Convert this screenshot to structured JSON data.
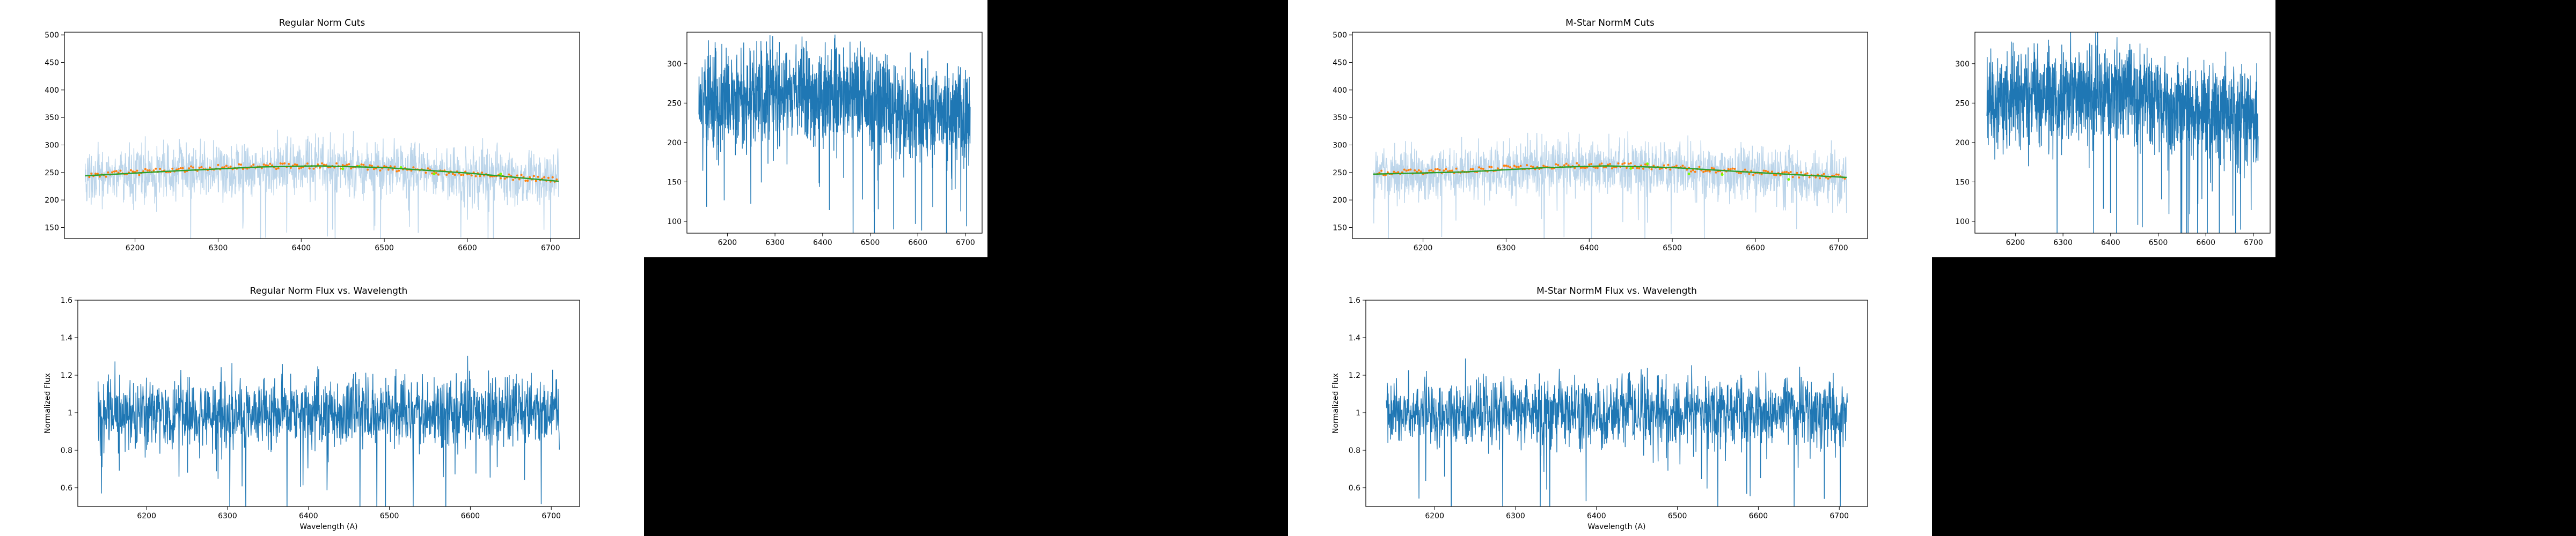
{
  "colors": {
    "page_background": "#000000",
    "raw_spectrum": "#1f77b4",
    "raw_spectrum_faded": "#bcd5ea",
    "cut_points": "#ff7f0e",
    "fit_line": "#2ca02c",
    "rejected_points": "#7cfc00"
  },
  "chart_data": [
    {
      "id": "regular-cuts",
      "type": "line",
      "title": "Regular Norm Cuts",
      "xlabel": "",
      "ylabel": "",
      "xlim": [
        6115,
        6735
      ],
      "ylim": [
        130,
        505
      ],
      "x_ticks": [
        6200,
        6300,
        6400,
        6500,
        6600,
        6700
      ],
      "y_ticks": [
        150,
        200,
        250,
        300,
        350,
        400,
        450,
        500
      ],
      "x_range": [
        6140,
        6710
      ],
      "series": [
        {
          "role": "spectrum",
          "color": "#bcd5ea",
          "baseline": [
            [
              6140,
              242
            ],
            [
              6250,
              250
            ],
            [
              6420,
              262
            ],
            [
              6550,
              250
            ],
            [
              6710,
              236
            ]
          ],
          "noise": 24,
          "dips": 22
        },
        {
          "role": "cuts",
          "color": "#ff7f0e",
          "points": [
            [
              6150,
              245
            ],
            [
              6200,
              250
            ],
            [
              6250,
              255
            ],
            [
              6300,
              259
            ],
            [
              6350,
              261
            ],
            [
              6400,
              262
            ],
            [
              6450,
              262
            ],
            [
              6500,
              258
            ],
            [
              6550,
              253
            ],
            [
              6600,
              247
            ],
            [
              6650,
              242
            ],
            [
              6700,
              237
            ]
          ]
        },
        {
          "role": "fit",
          "color": "#2ca02c",
          "points": [
            [
              6140,
              244
            ],
            [
              6250,
              253
            ],
            [
              6350,
              260
            ],
            [
              6420,
              262
            ],
            [
              6500,
              259
            ],
            [
              6600,
              249
            ],
            [
              6710,
              234
            ]
          ]
        }
      ]
    },
    {
      "id": "raw-flux-1",
      "type": "line",
      "title": "",
      "xlabel": "",
      "ylabel": "",
      "xlim": [
        6115,
        6735
      ],
      "ylim": [
        85,
        340
      ],
      "x_ticks": [
        6200,
        6300,
        6400,
        6500,
        6600,
        6700
      ],
      "y_ticks": [
        100,
        150,
        200,
        250,
        300
      ],
      "x_range": [
        6140,
        6710
      ],
      "series": [
        {
          "role": "spectrum",
          "color": "#1f77b4",
          "baseline": [
            [
              6140,
              250
            ],
            [
              6250,
              258
            ],
            [
              6420,
              265
            ],
            [
              6550,
              245
            ],
            [
              6710,
              232
            ]
          ],
          "noise": 30,
          "dips": 30
        }
      ]
    },
    {
      "id": "mstar-cuts",
      "type": "line",
      "title": "M-Star NormM Cuts",
      "xlabel": "",
      "ylabel": "",
      "xlim": [
        6115,
        6735
      ],
      "ylim": [
        130,
        505
      ],
      "x_ticks": [
        6200,
        6300,
        6400,
        6500,
        6600,
        6700
      ],
      "y_ticks": [
        150,
        200,
        250,
        300,
        350,
        400,
        450,
        500
      ],
      "x_range": [
        6140,
        6710
      ],
      "series": [
        {
          "role": "spectrum",
          "color": "#bcd5ea",
          "baseline": [
            [
              6140,
              244
            ],
            [
              6250,
              250
            ],
            [
              6400,
              262
            ],
            [
              6550,
              252
            ],
            [
              6710,
              240
            ]
          ],
          "noise": 24,
          "dips": 22
        },
        {
          "role": "cuts",
          "color": "#ff7f0e",
          "points": [
            [
              6170,
              250
            ],
            [
              6230,
              252
            ],
            [
              6300,
              258
            ],
            [
              6350,
              262
            ],
            [
              6400,
              263
            ],
            [
              6450,
              262
            ],
            [
              6500,
              259
            ],
            [
              6550,
              254
            ],
            [
              6600,
              250
            ],
            [
              6650,
              246
            ],
            [
              6700,
              242
            ]
          ]
        },
        {
          "role": "fit",
          "color": "#2ca02c",
          "points": [
            [
              6140,
              247
            ],
            [
              6250,
              251
            ],
            [
              6350,
              259
            ],
            [
              6420,
              262
            ],
            [
              6500,
              259
            ],
            [
              6600,
              250
            ],
            [
              6710,
              241
            ]
          ]
        }
      ]
    },
    {
      "id": "raw-flux-2",
      "type": "line",
      "title": "",
      "xlabel": "",
      "ylabel": "",
      "xlim": [
        6115,
        6735
      ],
      "ylim": [
        85,
        340
      ],
      "x_ticks": [
        6200,
        6300,
        6400,
        6500,
        6600,
        6700
      ],
      "y_ticks": [
        100,
        150,
        200,
        250,
        300
      ],
      "x_range": [
        6140,
        6710
      ],
      "series": [
        {
          "role": "spectrum",
          "color": "#1f77b4",
          "baseline": [
            [
              6140,
              250
            ],
            [
              6250,
              258
            ],
            [
              6420,
              265
            ],
            [
              6550,
              245
            ],
            [
              6710,
              232
            ]
          ],
          "noise": 30,
          "dips": 30
        }
      ]
    },
    {
      "id": "regular-normalized",
      "type": "line",
      "title": "Regular Norm Flux vs. Wavelength",
      "xlabel": "Wavelength (A)",
      "ylabel": "Normalized Flux",
      "xlim": [
        6115,
        6735
      ],
      "ylim": [
        0.5,
        1.6
      ],
      "x_ticks": [
        6200,
        6300,
        6400,
        6500,
        6600,
        6700
      ],
      "y_ticks": [
        0.6,
        0.8,
        1.0,
        1.2,
        1.4,
        1.6
      ],
      "x_range": [
        6140,
        6710
      ],
      "series": [
        {
          "role": "spectrum",
          "color": "#1f77b4",
          "baseline": [
            [
              6140,
              1.0
            ],
            [
              6710,
              1.0
            ]
          ],
          "noise": 0.09,
          "dips": 28
        }
      ]
    },
    {
      "id": "mstar-normalized",
      "type": "line",
      "title": "M-Star NormM Flux vs. Wavelength",
      "xlabel": "Wavelength (A)",
      "ylabel": "Normalized Flux",
      "xlim": [
        6115,
        6735
      ],
      "ylim": [
        0.5,
        1.6
      ],
      "x_ticks": [
        6200,
        6300,
        6400,
        6500,
        6600,
        6700
      ],
      "y_ticks": [
        0.6,
        0.8,
        1.0,
        1.2,
        1.4,
        1.6
      ],
      "x_range": [
        6140,
        6710
      ],
      "series": [
        {
          "role": "spectrum",
          "color": "#1f77b4",
          "baseline": [
            [
              6140,
              1.0
            ],
            [
              6710,
              1.0
            ]
          ],
          "noise": 0.09,
          "dips": 28
        }
      ]
    }
  ]
}
